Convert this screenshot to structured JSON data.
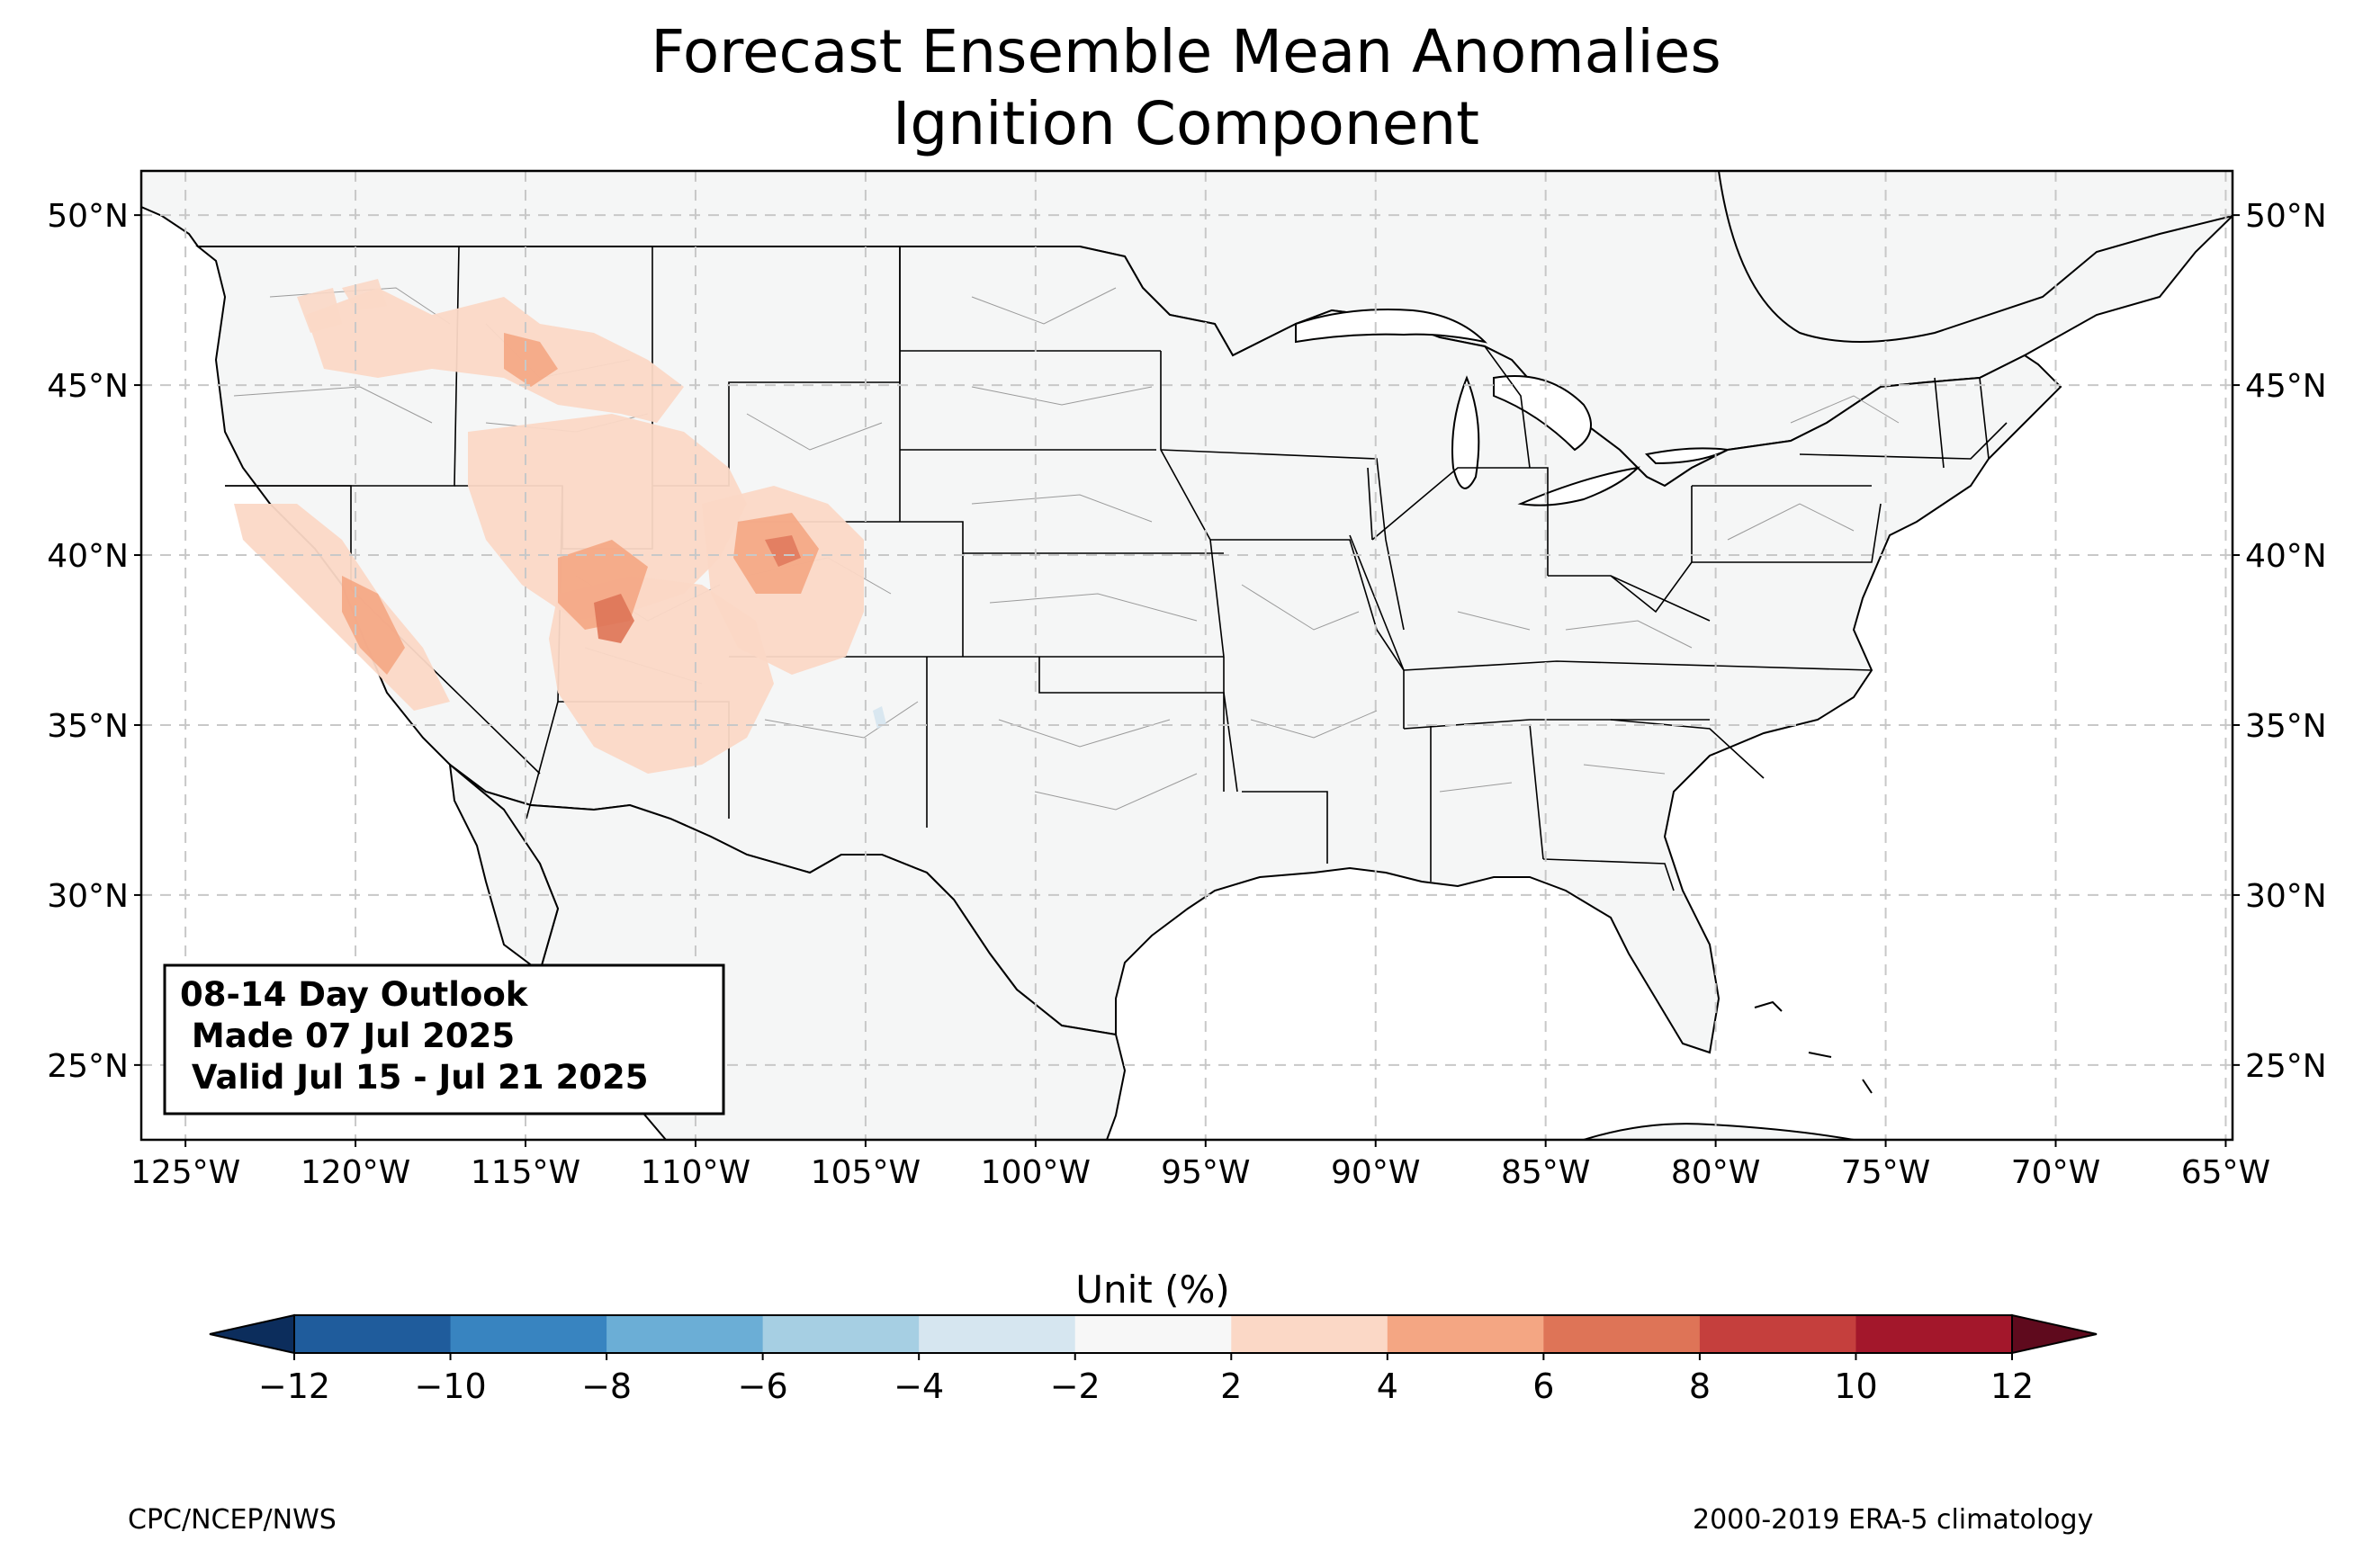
{
  "title": {
    "line1": "Forecast Ensemble Mean Anomalies",
    "line2": "Ignition Component"
  },
  "map": {
    "lat_ticks": [
      "50°N",
      "45°N",
      "40°N",
      "35°N",
      "30°N",
      "25°N"
    ],
    "lon_ticks": [
      "125°W",
      "120°W",
      "115°W",
      "110°W",
      "105°W",
      "100°W",
      "95°W",
      "90°W",
      "85°W",
      "80°W",
      "75°W",
      "70°W",
      "65°W"
    ],
    "extent": {
      "lon_min": -126.3,
      "lon_max": -64.8,
      "lat_min": 22.8,
      "lat_max": 51.3
    },
    "gridlines": true,
    "background_color": "#f5f6f6",
    "anomaly_regions": [
      {
        "name": "northern-rockies-anomaly",
        "level": "2-4"
      },
      {
        "name": "great-basin-anomaly",
        "level": "2-4"
      },
      {
        "name": "colorado-plateau-anomaly",
        "level": "2-4"
      },
      {
        "name": "southwest-utah-anomaly",
        "level": "4-8"
      },
      {
        "name": "colorado-anomaly",
        "level": "2-6"
      },
      {
        "name": "california-anomaly",
        "level": "2-6"
      }
    ]
  },
  "outlook": {
    "line1": "08-14 Day Outlook",
    "line2": " Made 07 Jul 2025",
    "line3": " Valid Jul 15 - Jul 21 2025"
  },
  "colorbar": {
    "label": "Unit (%)",
    "ticks": [
      "−12",
      "−10",
      "−8",
      "−6",
      "−4",
      "−2",
      "2",
      "4",
      "6",
      "8",
      "10",
      "12"
    ],
    "colors": [
      "#1f5c9c",
      "#3884c0",
      "#6baed6",
      "#a6cfe3",
      "#d6e6f0",
      "#f7f7f7",
      "#fbd8c6",
      "#f4a683",
      "#de7457",
      "#c53f3d",
      "#a3172b"
    ],
    "under_color": "#0c2d5c",
    "over_color": "#5f0a1d"
  },
  "footer": {
    "left": "CPC/NCEP/NWS",
    "right": "2000-2019 ERA-5 climatology"
  }
}
